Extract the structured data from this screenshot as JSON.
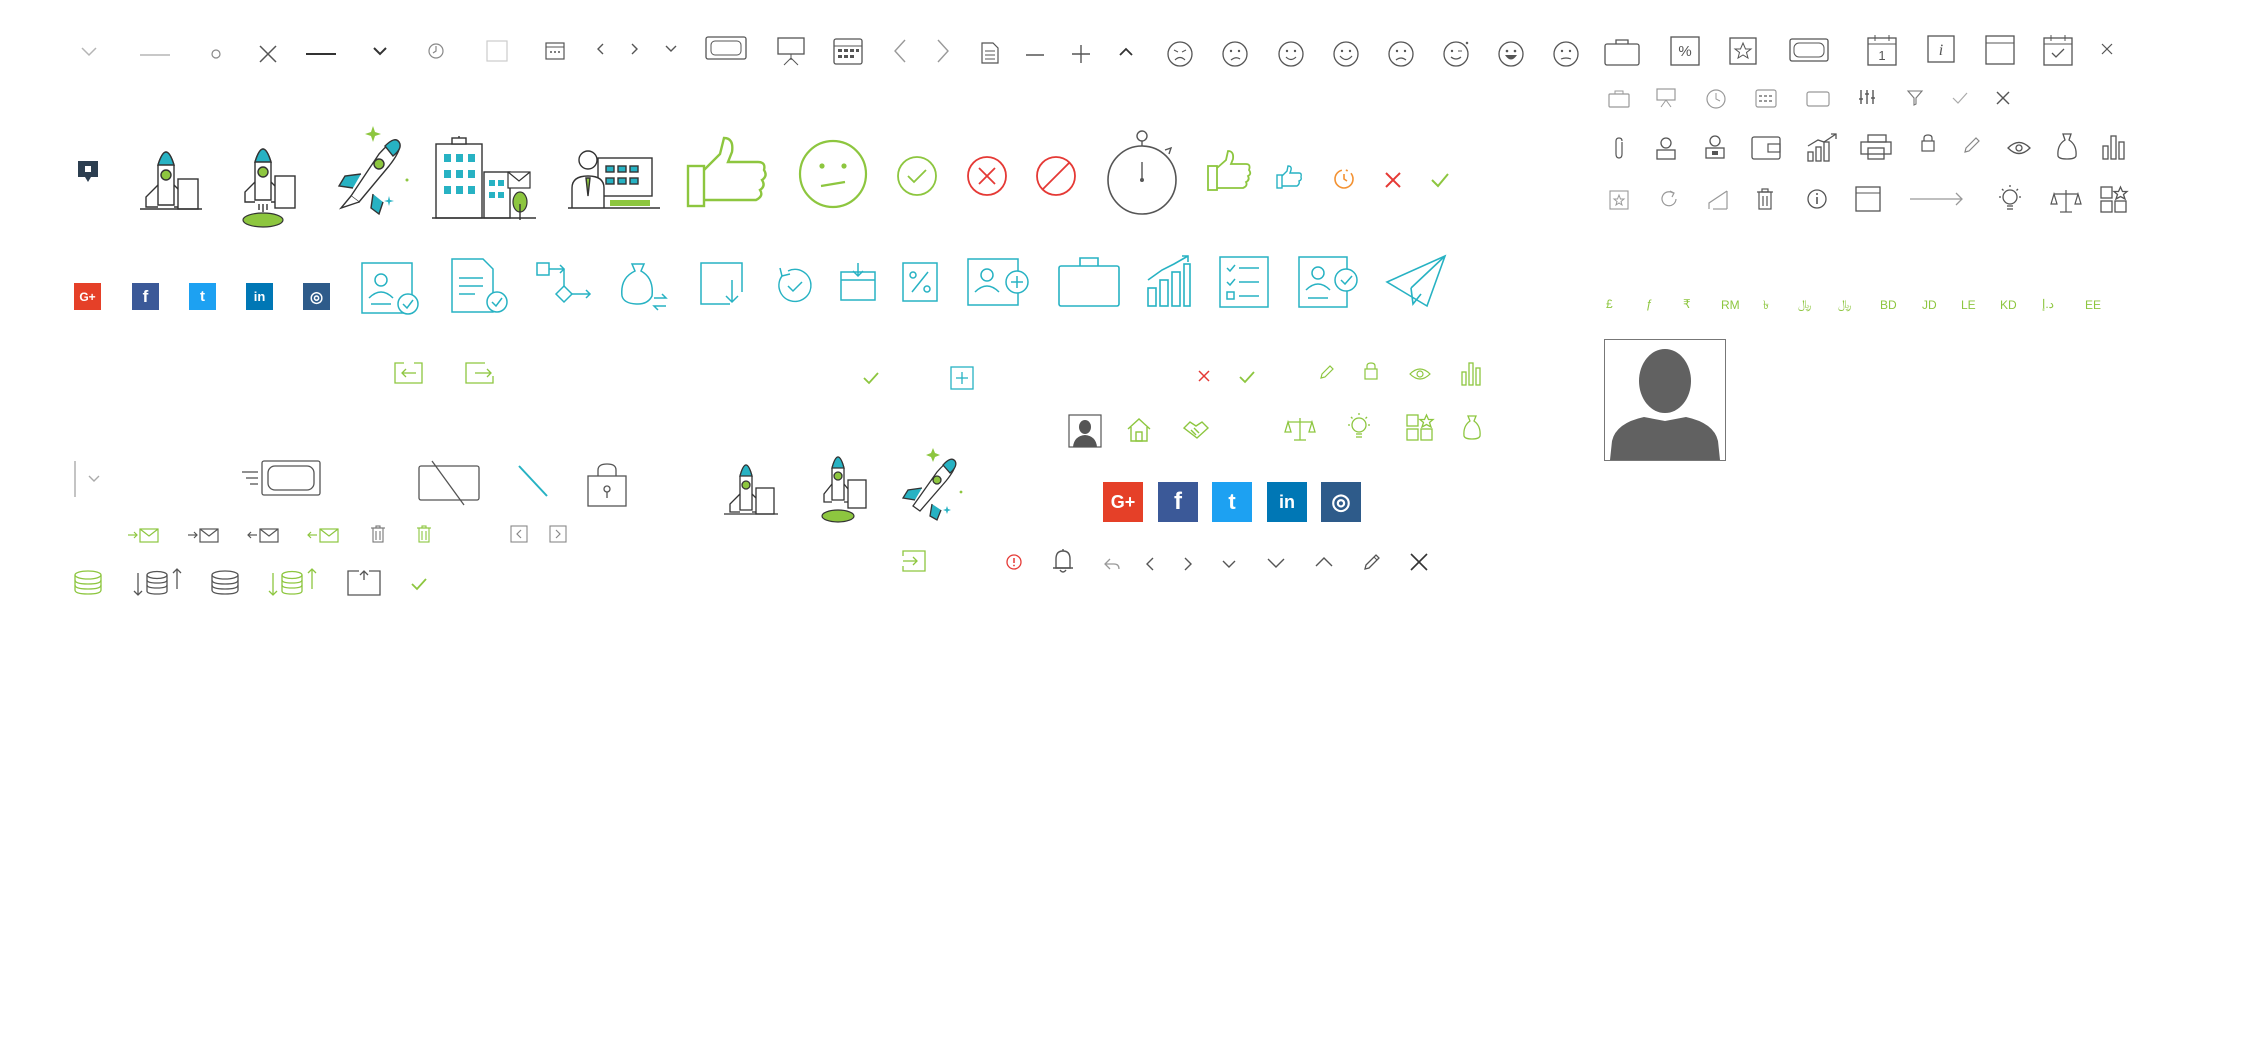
{
  "colors": {
    "grey": "#555555",
    "light_grey": "#b5b5b5",
    "green": "#8dc63f",
    "teal": "#27b2c3",
    "red": "#e53935",
    "orange": "#f39233",
    "navy": "#2c3e50",
    "google": "#e54028",
    "facebook": "#3b5998",
    "twitter": "#1da1f2",
    "linkedin": "#0077b5",
    "instagram": "#2e5b8a"
  },
  "icon_sheet": {
    "currency_symbols": [
      "£",
      "ƒ",
      "₹",
      "RM",
      "৳",
      "﷼",
      "﷼",
      "BD",
      "JD",
      "LE",
      "KD",
      "د.إ",
      "EE"
    ],
    "social": {
      "google": "G+",
      "facebook": "f",
      "twitter": "t",
      "linkedin": "in",
      "instagram": "◎"
    },
    "percent_glyph": "%",
    "calendar_day": "1",
    "info_glyph": "i"
  }
}
